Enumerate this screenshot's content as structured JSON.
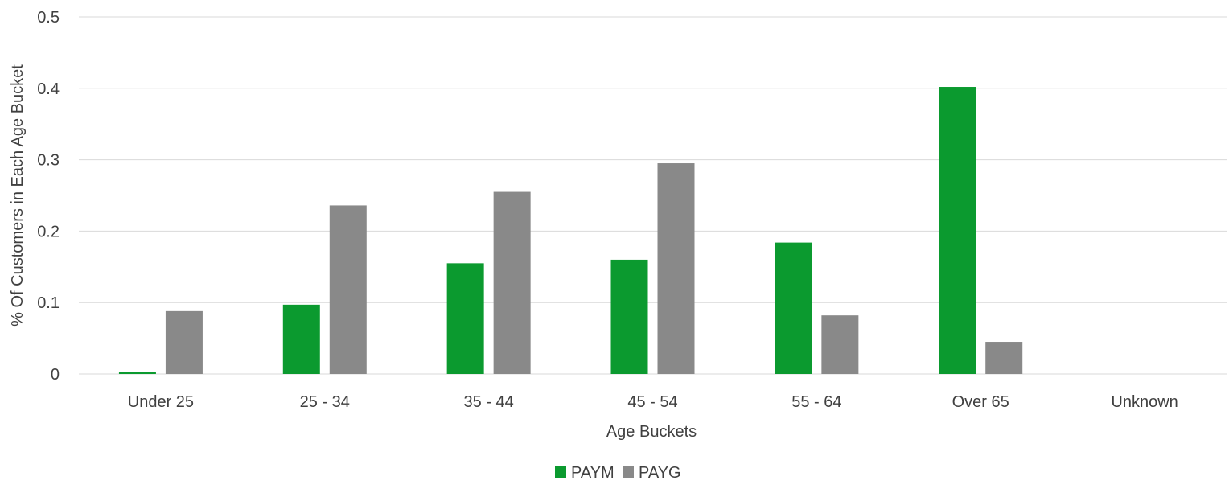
{
  "chart_data": {
    "type": "bar",
    "categories": [
      "Under 25",
      "25 - 34",
      "35 - 44",
      "45 - 54",
      "55 - 64",
      "Over 65",
      "Unknown"
    ],
    "series": [
      {
        "name": "PAYM",
        "color": "#0b9a2f",
        "values": [
          0.003,
          0.097,
          0.155,
          0.16,
          0.184,
          0.402,
          0
        ]
      },
      {
        "name": "PAYG",
        "color": "#898989",
        "values": [
          0.088,
          0.236,
          0.255,
          0.295,
          0.082,
          0.045,
          0
        ]
      }
    ],
    "title": "",
    "xlabel": "Age Buckets",
    "ylabel": "% Of Customers in Each Age Bucket",
    "ylim": [
      0,
      0.5
    ],
    "yticks": [
      "0",
      "0.1",
      "0.2",
      "0.3",
      "0.4",
      "0.5"
    ],
    "grid": true,
    "legend_position": "bottom"
  }
}
